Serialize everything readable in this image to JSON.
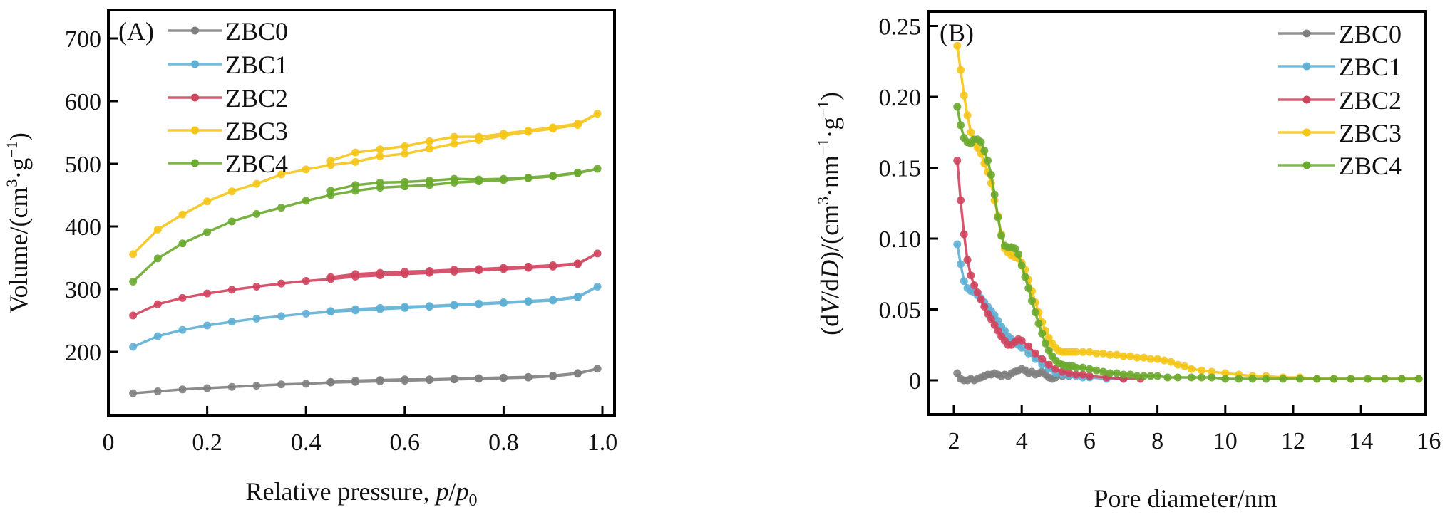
{
  "chart_data": [
    {
      "type": "line",
      "panel_label": "(A)",
      "title": "",
      "xlabel": "Relative pressure, p/p0",
      "xlabel_parts": {
        "text": "Relative pressure, ",
        "italic_p": "p",
        "slash": "/",
        "italic_p0": "p",
        "sub": "0"
      },
      "ylabel": "Volume/(cm³·g⁻¹)",
      "ylabel_parts": {
        "main": "Volume/(cm",
        "sup3": "3",
        "dot": "·g",
        "supm1": "−1",
        "close": ")"
      },
      "xlim": [
        0,
        1.0
      ],
      "ylim": [
        100,
        720
      ],
      "xticks": [
        0,
        0.2,
        0.4,
        0.6,
        0.8,
        1.0
      ],
      "xtick_labels": [
        "0",
        "0.2",
        "0.4",
        "0.6",
        "0.8",
        "1.0"
      ],
      "yticks": [
        200,
        300,
        400,
        500,
        600,
        700
      ],
      "ytick_labels": [
        "200",
        "300",
        "400",
        "500",
        "600",
        "700"
      ],
      "grid": false,
      "legend_position": "top-left",
      "series": [
        {
          "name": "ZBC0",
          "color": "#7f7f7f",
          "x": [
            0.05,
            0.1,
            0.15,
            0.2,
            0.25,
            0.3,
            0.35,
            0.4,
            0.45,
            0.5,
            0.55,
            0.6,
            0.65,
            0.7,
            0.75,
            0.8,
            0.85,
            0.9,
            0.95,
            0.99,
            0.95,
            0.9,
            0.85,
            0.8,
            0.75,
            0.7,
            0.65,
            0.6,
            0.55,
            0.5,
            0.45
          ],
          "y": [
            134,
            137,
            140,
            142,
            144,
            146,
            148,
            149,
            151,
            152,
            153,
            154,
            155,
            156,
            157,
            158,
            159,
            161,
            165,
            173,
            166,
            162,
            160,
            159,
            158,
            157,
            156,
            156,
            155,
            154,
            152
          ]
        },
        {
          "name": "ZBC1",
          "color": "#5fb0d5",
          "x": [
            0.05,
            0.1,
            0.15,
            0.2,
            0.25,
            0.3,
            0.35,
            0.4,
            0.45,
            0.5,
            0.55,
            0.6,
            0.65,
            0.7,
            0.75,
            0.8,
            0.85,
            0.9,
            0.95,
            0.99,
            0.95,
            0.9,
            0.85,
            0.8,
            0.75,
            0.7,
            0.65,
            0.6,
            0.55,
            0.5,
            0.45
          ],
          "y": [
            208,
            225,
            235,
            242,
            248,
            253,
            257,
            261,
            264,
            266,
            268,
            270,
            272,
            274,
            276,
            278,
            280,
            282,
            287,
            304,
            288,
            283,
            281,
            279,
            277,
            275,
            273,
            272,
            270,
            268,
            265
          ]
        },
        {
          "name": "ZBC2",
          "color": "#d0445e",
          "x": [
            0.05,
            0.1,
            0.15,
            0.2,
            0.25,
            0.3,
            0.35,
            0.4,
            0.45,
            0.5,
            0.55,
            0.6,
            0.65,
            0.7,
            0.75,
            0.8,
            0.85,
            0.9,
            0.95,
            0.99,
            0.95,
            0.9,
            0.85,
            0.8,
            0.75,
            0.7,
            0.65,
            0.6,
            0.55,
            0.5,
            0.45
          ],
          "y": [
            258,
            276,
            286,
            293,
            299,
            304,
            309,
            313,
            316,
            320,
            322,
            324,
            326,
            328,
            330,
            332,
            334,
            336,
            340,
            357,
            341,
            338,
            336,
            334,
            332,
            331,
            329,
            328,
            326,
            324,
            319
          ]
        },
        {
          "name": "ZBC3",
          "color": "#f5c518",
          "x": [
            0.05,
            0.1,
            0.15,
            0.2,
            0.25,
            0.3,
            0.35,
            0.4,
            0.45,
            0.5,
            0.55,
            0.6,
            0.65,
            0.7,
            0.75,
            0.8,
            0.85,
            0.9,
            0.95,
            0.99,
            0.95,
            0.9,
            0.85,
            0.8,
            0.75,
            0.7,
            0.65,
            0.6,
            0.55,
            0.5,
            0.45
          ],
          "y": [
            356,
            395,
            419,
            440,
            456,
            468,
            483,
            491,
            498,
            503,
            512,
            516,
            524,
            532,
            538,
            545,
            551,
            556,
            562,
            580,
            564,
            558,
            553,
            548,
            543,
            543,
            536,
            528,
            523,
            518,
            505
          ]
        },
        {
          "name": "ZBC4",
          "color": "#6aaa2e",
          "x": [
            0.05,
            0.1,
            0.15,
            0.2,
            0.25,
            0.3,
            0.35,
            0.4,
            0.45,
            0.5,
            0.55,
            0.6,
            0.65,
            0.7,
            0.75,
            0.8,
            0.85,
            0.9,
            0.95,
            0.99,
            0.95,
            0.9,
            0.85,
            0.8,
            0.75,
            0.7,
            0.65,
            0.6,
            0.55,
            0.5,
            0.45
          ],
          "y": [
            312,
            349,
            373,
            391,
            408,
            420,
            430,
            441,
            450,
            457,
            462,
            464,
            466,
            470,
            472,
            474,
            477,
            480,
            485,
            492,
            486,
            481,
            478,
            476,
            475,
            476,
            473,
            471,
            470,
            466,
            457
          ]
        }
      ]
    },
    {
      "type": "line",
      "panel_label": "(B)",
      "title": "",
      "xlabel": "Pore diameter/nm",
      "ylabel": "(dV/dD)/(cm³·nm⁻¹·g⁻¹)",
      "ylabel_parts": {
        "open": "(d",
        "italic_V": "V",
        "mid": "/d",
        "italic_D": "D",
        "close1": ")/(cm",
        "sup3": "3",
        "nm": "·nm",
        "supm1a": "−1",
        "g": "·g",
        "supm1b": "−1",
        "close2": ")"
      },
      "xlim": [
        1.1,
        16
      ],
      "ylim": [
        -0.024,
        0.26
      ],
      "xticks": [
        2,
        4,
        6,
        8,
        10,
        12,
        14,
        16
      ],
      "xtick_labels": [
        "2",
        "4",
        "6",
        "8",
        "10",
        "12",
        "14",
        "16"
      ],
      "yticks": [
        0,
        0.05,
        0.1,
        0.15,
        0.2,
        0.25
      ],
      "ytick_labels": [
        "0",
        "0.05",
        "0.10",
        "0.15",
        "0.20",
        "0.25"
      ],
      "grid": false,
      "legend_position": "top-right",
      "series": [
        {
          "name": "ZBC0",
          "color": "#7f7f7f",
          "x": [
            2.1,
            2.2,
            2.3,
            2.4,
            2.5,
            2.6,
            2.7,
            2.8,
            2.9,
            3.0,
            3.1,
            3.2,
            3.3,
            3.4,
            3.5,
            3.6,
            3.7,
            3.8,
            3.9,
            4.0,
            4.1,
            4.2,
            4.3,
            4.4,
            4.5,
            4.6,
            4.7,
            4.8,
            4.9,
            5.0,
            5.2,
            5.4
          ],
          "y": [
            0.005,
            0.001,
            0.0,
            0.0,
            0.001,
            0.0,
            0.001,
            0.002,
            0.003,
            0.004,
            0.004,
            0.005,
            0.004,
            0.003,
            0.004,
            0.003,
            0.005,
            0.006,
            0.007,
            0.008,
            0.007,
            0.005,
            0.006,
            0.004,
            0.005,
            0.006,
            0.004,
            0.002,
            0.001,
            0.002,
            0.003,
            0.003
          ]
        },
        {
          "name": "ZBC1",
          "color": "#5fb0d5",
          "x": [
            2.1,
            2.2,
            2.3,
            2.4,
            2.5,
            2.6,
            2.7,
            2.8,
            2.9,
            3.0,
            3.1,
            3.2,
            3.3,
            3.4,
            3.5,
            3.6,
            3.7,
            3.8,
            3.9,
            4.0,
            4.2,
            4.4,
            4.6,
            4.8,
            5.0,
            5.2,
            5.4,
            5.6,
            5.8,
            6.0,
            6.5,
            7.0
          ],
          "y": [
            0.096,
            0.082,
            0.07,
            0.065,
            0.063,
            0.062,
            0.06,
            0.058,
            0.055,
            0.052,
            0.049,
            0.046,
            0.042,
            0.038,
            0.035,
            0.031,
            0.029,
            0.027,
            0.025,
            0.023,
            0.019,
            0.015,
            0.011,
            0.008,
            0.005,
            0.004,
            0.003,
            0.003,
            0.002,
            0.002,
            0.001,
            0.001
          ]
        },
        {
          "name": "ZBC2",
          "color": "#d0445e",
          "x": [
            2.1,
            2.2,
            2.3,
            2.4,
            2.5,
            2.6,
            2.7,
            2.8,
            2.9,
            3.0,
            3.1,
            3.2,
            3.3,
            3.4,
            3.5,
            3.6,
            3.7,
            3.8,
            3.9,
            4.0,
            4.2,
            4.4,
            4.6,
            4.8,
            5.0,
            5.2,
            5.4,
            5.6,
            5.8,
            6.0,
            6.5,
            7.0,
            7.5
          ],
          "y": [
            0.155,
            0.127,
            0.103,
            0.085,
            0.074,
            0.067,
            0.062,
            0.057,
            0.052,
            0.047,
            0.043,
            0.039,
            0.035,
            0.031,
            0.028,
            0.025,
            0.025,
            0.027,
            0.029,
            0.028,
            0.024,
            0.019,
            0.015,
            0.011,
            0.008,
            0.006,
            0.005,
            0.004,
            0.004,
            0.003,
            0.002,
            0.001,
            0.001
          ]
        },
        {
          "name": "ZBC3",
          "color": "#f5c518",
          "x": [
            2.1,
            2.2,
            2.3,
            2.4,
            2.5,
            2.6,
            2.7,
            2.8,
            2.9,
            3.0,
            3.1,
            3.2,
            3.3,
            3.4,
            3.5,
            3.6,
            3.7,
            3.8,
            3.9,
            4.0,
            4.1,
            4.2,
            4.3,
            4.4,
            4.5,
            4.6,
            4.7,
            4.8,
            4.9,
            5.0,
            5.1,
            5.2,
            5.3,
            5.4,
            5.5,
            5.6,
            5.8,
            6.0,
            6.2,
            6.4,
            6.6,
            6.8,
            7.0,
            7.2,
            7.4,
            7.6,
            7.8,
            8.0,
            8.2,
            8.4,
            8.6,
            8.8,
            9.0,
            9.3,
            9.6,
            10.0,
            10.4,
            10.8,
            11.2,
            11.7,
            12.2,
            12.7,
            13.2,
            13.7,
            14.2,
            14.7,
            15.2,
            15.7
          ],
          "y": [
            0.236,
            0.219,
            0.201,
            0.187,
            0.175,
            0.168,
            0.164,
            0.16,
            0.153,
            0.147,
            0.139,
            0.127,
            0.116,
            0.103,
            0.093,
            0.09,
            0.088,
            0.087,
            0.086,
            0.083,
            0.078,
            0.071,
            0.063,
            0.055,
            0.048,
            0.041,
            0.035,
            0.03,
            0.026,
            0.023,
            0.021,
            0.02,
            0.02,
            0.02,
            0.02,
            0.02,
            0.02,
            0.02,
            0.019,
            0.019,
            0.018,
            0.018,
            0.017,
            0.017,
            0.016,
            0.016,
            0.015,
            0.015,
            0.014,
            0.013,
            0.011,
            0.01,
            0.008,
            0.007,
            0.006,
            0.005,
            0.004,
            0.003,
            0.003,
            0.002,
            0.002,
            0.001,
            0.001,
            0.001,
            0.001,
            0.001,
            0.001,
            0.001
          ]
        },
        {
          "name": "ZBC4",
          "color": "#6aaa2e",
          "x": [
            2.1,
            2.2,
            2.3,
            2.4,
            2.5,
            2.6,
            2.7,
            2.8,
            2.9,
            3.0,
            3.1,
            3.2,
            3.3,
            3.4,
            3.5,
            3.6,
            3.7,
            3.8,
            3.9,
            4.0,
            4.1,
            4.2,
            4.3,
            4.4,
            4.5,
            4.6,
            4.7,
            4.8,
            4.9,
            5.0,
            5.1,
            5.2,
            5.3,
            5.4,
            5.5,
            5.6,
            5.8,
            6.0,
            6.2,
            6.4,
            6.6,
            6.8,
            7.0,
            7.2,
            7.4,
            7.6,
            7.8,
            8.0,
            8.3,
            8.6,
            9.0,
            9.3,
            9.6,
            10.0,
            10.4,
            10.8,
            11.2,
            11.7,
            12.2,
            12.7,
            13.2,
            13.7,
            14.2,
            14.7,
            15.2,
            15.7
          ],
          "y": [
            0.193,
            0.18,
            0.171,
            0.168,
            0.167,
            0.17,
            0.17,
            0.168,
            0.162,
            0.155,
            0.145,
            0.131,
            0.115,
            0.102,
            0.095,
            0.094,
            0.094,
            0.093,
            0.089,
            0.081,
            0.073,
            0.065,
            0.056,
            0.048,
            0.04,
            0.033,
            0.026,
            0.021,
            0.017,
            0.014,
            0.012,
            0.011,
            0.01,
            0.01,
            0.01,
            0.009,
            0.009,
            0.008,
            0.007,
            0.006,
            0.005,
            0.005,
            0.004,
            0.004,
            0.003,
            0.003,
            0.003,
            0.003,
            0.002,
            0.002,
            0.002,
            0.002,
            0.002,
            0.001,
            0.001,
            0.001,
            0.001,
            0.001,
            0.001,
            0.001,
            0.001,
            0.001,
            0.001,
            0.001,
            0.001,
            0.001
          ]
        }
      ]
    }
  ]
}
